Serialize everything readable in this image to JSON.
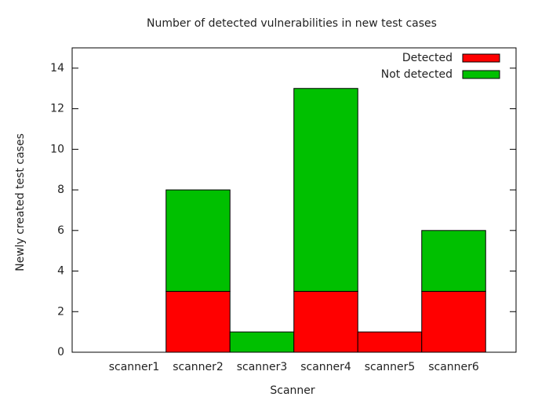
{
  "chart_data": {
    "type": "stacked_bar",
    "title": "Number of detected vulnerabilities in new test cases",
    "x_label": "Scanner",
    "y_label": "Newly created test cases",
    "categories": [
      "scanner1",
      "scanner2",
      "scanner3",
      "scanner4",
      "scanner5",
      "scanner6"
    ],
    "series": [
      {
        "name": "Detected",
        "color": "#ff0000",
        "values": [
          0,
          3,
          0,
          3,
          1,
          3
        ]
      },
      {
        "name": "Not detected",
        "color": "#00c000",
        "values": [
          0,
          5,
          1,
          10,
          0,
          3
        ]
      }
    ],
    "ylim": [
      0,
      15
    ],
    "yticks": [
      0,
      2,
      4,
      6,
      8,
      10,
      12,
      14
    ],
    "legend": "top-right"
  }
}
